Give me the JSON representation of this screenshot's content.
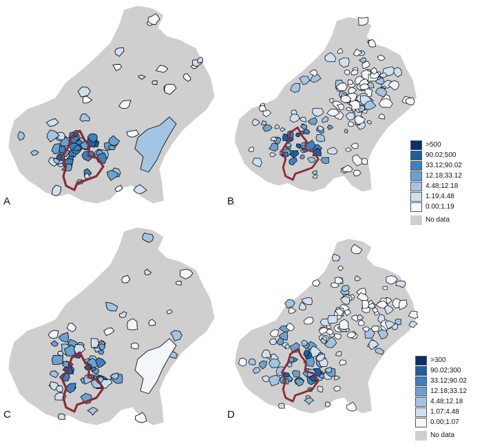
{
  "panels": [
    {
      "label": "A",
      "legend": null
    },
    {
      "label": "B",
      "legend": {
        "classes": [
          ">500",
          "90.02;500",
          "33.12;90.02",
          "12.18;33.12",
          "4.48;12.18",
          "1.19;4.48",
          "0.00;1.19"
        ],
        "no_data": "No data"
      }
    },
    {
      "label": "C",
      "legend": null
    },
    {
      "label": "D",
      "legend": {
        "classes": [
          ">300",
          "90.02;300",
          "33.12;90.02",
          "12.18;33.12",
          "4.48;12.18",
          "1.07;4.48",
          "0.00;1.07"
        ],
        "no_data": "No data"
      }
    }
  ],
  "colors": {
    "no_data": "#cfcfcf",
    "classes": [
      "#08306b",
      "#1c5fa5",
      "#3f80c0",
      "#6aa3d2",
      "#a2c5e4",
      "#cfe0f1",
      "#f3f7fc"
    ],
    "boundary": "#8b2b32"
  }
}
